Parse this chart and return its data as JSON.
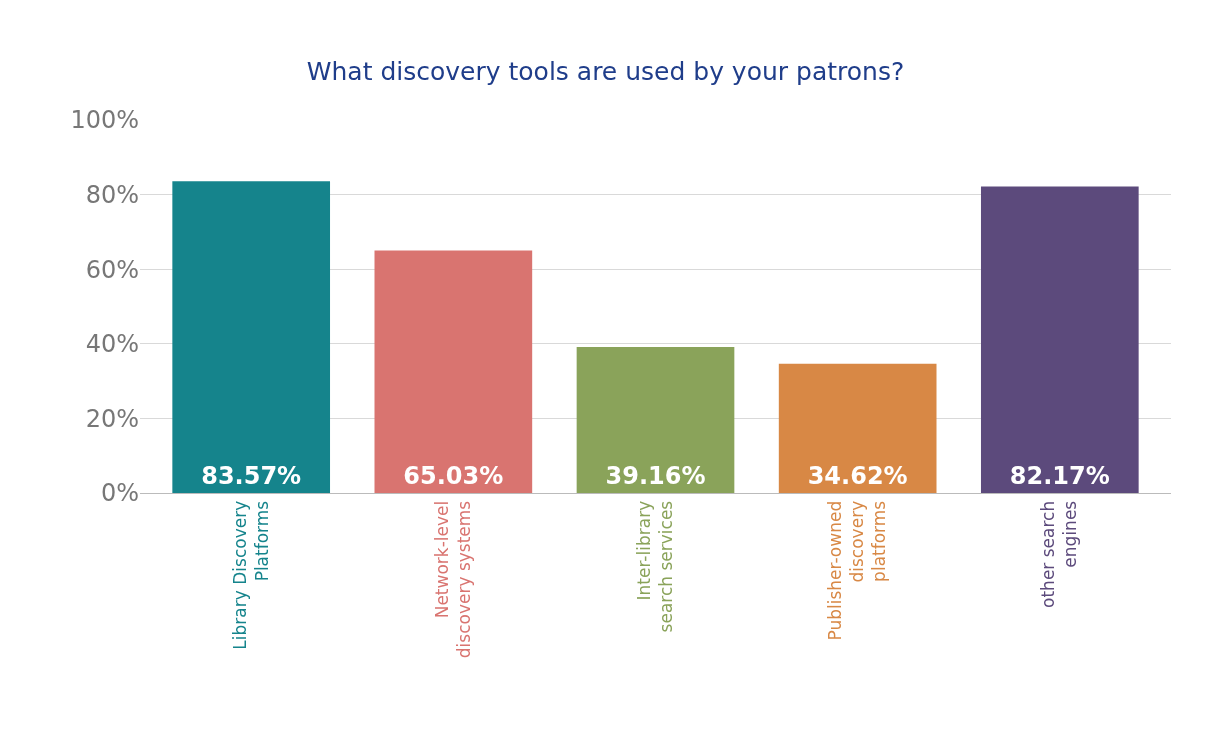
{
  "chart_data": {
    "type": "bar",
    "title": "What discovery tools are used by your patrons?",
    "categories": [
      "Library Discovery Platforms",
      "Network-level discovery systems",
      "Inter-library search services",
      "Publisher-owned discovery platforms",
      "other search engines"
    ],
    "values": [
      83.57,
      65.03,
      39.16,
      34.62,
      82.17
    ],
    "colors": [
      "#15848c",
      "#d97470",
      "#8aa35a",
      "#d88845",
      "#5c4a7c"
    ],
    "value_labels": [
      "83.57%",
      "65.03%",
      "39.16%",
      "34.62%",
      "82.17%"
    ],
    "ylim": [
      0,
      100
    ],
    "yticks": [
      {
        "value": 0,
        "label": "0%"
      },
      {
        "value": 20,
        "label": "20%"
      },
      {
        "value": 40,
        "label": "40%"
      },
      {
        "value": 60,
        "label": "60%"
      },
      {
        "value": 80,
        "label": "80%"
      },
      {
        "value": 100,
        "label": "100%"
      }
    ],
    "grid": "y"
  }
}
